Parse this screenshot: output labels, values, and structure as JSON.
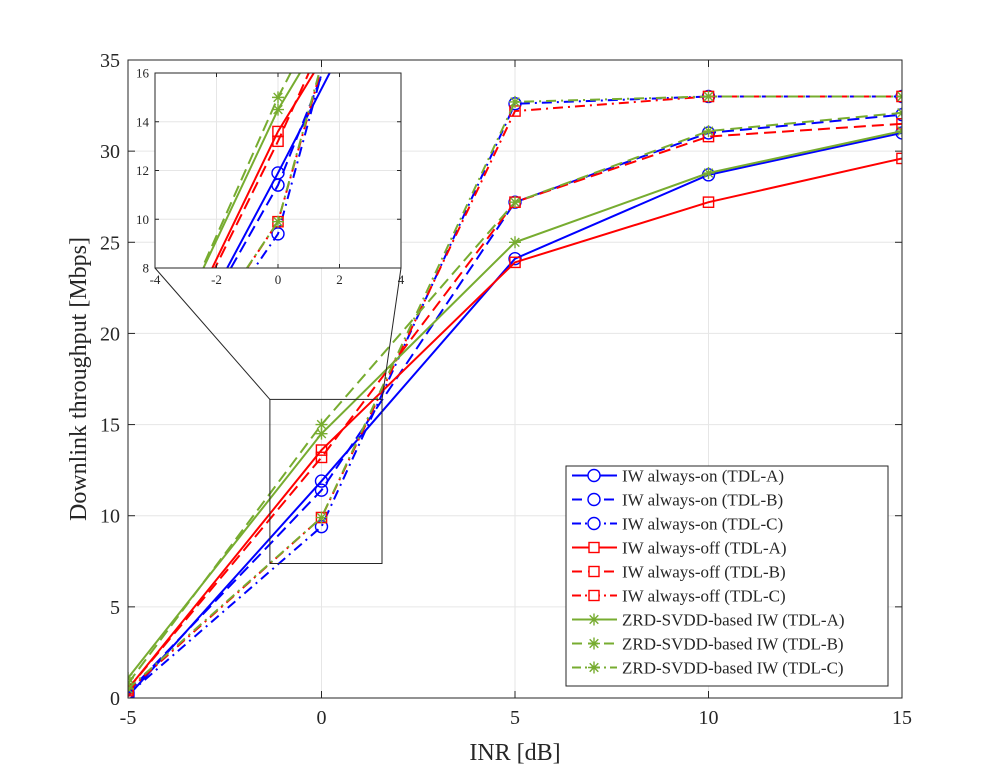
{
  "chart_data": {
    "type": "line",
    "xlabel": "INR [dB]",
    "ylabel": "Downlink throughput [Mbps]",
    "xlim": [
      -5,
      15
    ],
    "ylim": [
      0,
      35
    ],
    "x_ticks": [
      "-5",
      "0",
      "5",
      "10",
      "15"
    ],
    "y_ticks": [
      "0",
      "5",
      "10",
      "15",
      "20",
      "25",
      "30",
      "35"
    ],
    "grid": true,
    "legend_position": "bottom-right",
    "x": [
      -5,
      0,
      5,
      10,
      15
    ],
    "colors": {
      "blue": "#0000ff",
      "red": "#ff0000",
      "green": "#77ac30"
    },
    "series": [
      {
        "name": "IW always-on (TDL-A)",
        "color": "blue",
        "dash": "solid",
        "marker": "circle",
        "values": [
          0.1,
          11.9,
          24.1,
          28.7,
          31.0
        ]
      },
      {
        "name": "IW always-on (TDL-B)",
        "color": "blue",
        "dash": "dashed",
        "marker": "circle",
        "values": [
          0.3,
          11.4,
          27.2,
          31.0,
          32.0
        ]
      },
      {
        "name": "IW always-on (TDL-C)",
        "color": "blue",
        "dash": "dashdot",
        "marker": "circle",
        "values": [
          0.2,
          9.4,
          32.6,
          33.0,
          33.0
        ]
      },
      {
        "name": "IW always-off (TDL-A)",
        "color": "red",
        "dash": "solid",
        "marker": "square",
        "values": [
          0.5,
          13.6,
          23.9,
          27.2,
          29.6
        ]
      },
      {
        "name": "IW always-off (TDL-B)",
        "color": "red",
        "dash": "dashed",
        "marker": "square",
        "values": [
          0.5,
          13.2,
          27.2,
          30.8,
          31.5
        ]
      },
      {
        "name": "IW always-off (TDL-C)",
        "color": "red",
        "dash": "dashdot",
        "marker": "square",
        "values": [
          0.4,
          9.9,
          32.2,
          33.0,
          33.0
        ]
      },
      {
        "name": "ZRD-SVDD-based IW (TDL-A)",
        "color": "green",
        "dash": "solid",
        "marker": "star",
        "values": [
          1.1,
          14.5,
          25.0,
          28.8,
          31.1
        ]
      },
      {
        "name": "ZRD-SVDD-based IW (TDL-B)",
        "color": "green",
        "dash": "dashed",
        "marker": "star",
        "values": [
          0.8,
          15.0,
          27.2,
          31.1,
          32.1
        ]
      },
      {
        "name": "ZRD-SVDD-based IW (TDL-C)",
        "color": "green",
        "dash": "dashdot",
        "marker": "star",
        "values": [
          0.5,
          9.9,
          32.7,
          33.0,
          33.0
        ]
      }
    ],
    "inset": {
      "description": "zoom of region near INR = 0 dB",
      "xlim": [
        -4,
        4
      ],
      "ylim": [
        8,
        16
      ],
      "x_ticks": [
        "-4",
        "-2",
        "0",
        "2",
        "4"
      ],
      "y_ticks": [
        "8",
        "10",
        "12",
        "14",
        "16"
      ],
      "source_region": {
        "xlim": [
          -1.4,
          1.5
        ],
        "ylim": [
          7.3,
          16.2
        ]
      }
    }
  }
}
